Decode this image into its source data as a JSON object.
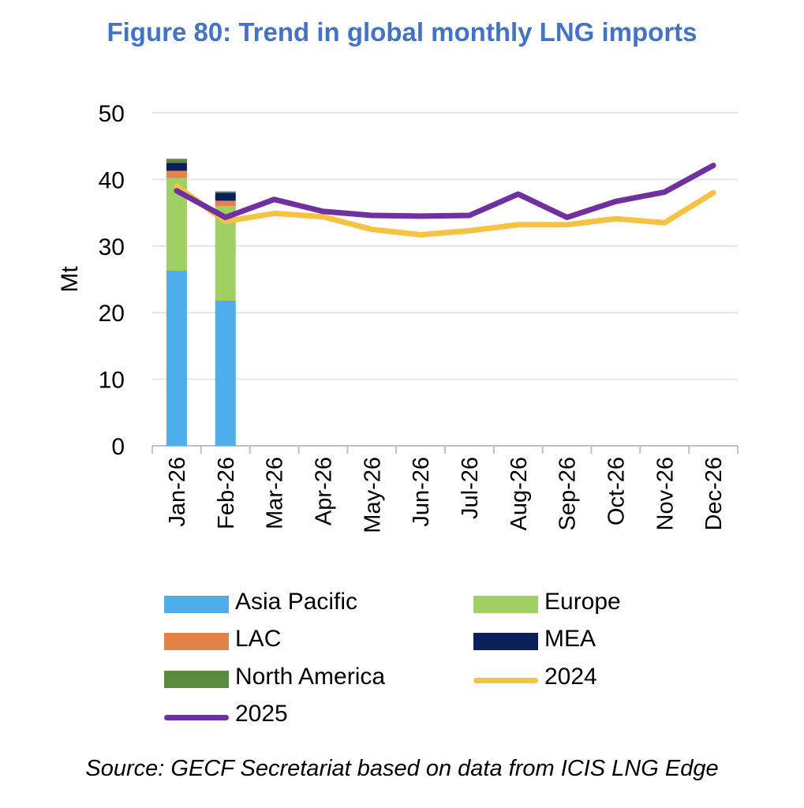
{
  "title": "Figure 80: Trend in global monthly LNG imports",
  "source": "Source: GECF Secretariat based on data from ICIS LNG Edge",
  "chart_data": {
    "type": "bar",
    "title": "Figure 80: Trend in global monthly LNG imports",
    "ylabel": "Mt",
    "xlabel": "",
    "ylim": [
      0,
      50
    ],
    "yticks": [
      0,
      10,
      20,
      30,
      40,
      50
    ],
    "grid": true,
    "legend": "bottom",
    "categories": [
      "Jan-26",
      "Feb-26",
      "Mar-26",
      "Apr-26",
      "May-26",
      "Jun-26",
      "Jul-26",
      "Aug-26",
      "Sep-26",
      "Oct-26",
      "Nov-26",
      "Dec-26"
    ],
    "series": [
      {
        "name": "Asia Pacific",
        "kind": "stacked-bar",
        "color": "#4daeea",
        "values": [
          26.3,
          21.8,
          null,
          null,
          null,
          null,
          null,
          null,
          null,
          null,
          null,
          null
        ]
      },
      {
        "name": "Europe",
        "kind": "stacked-bar",
        "color": "#a0cf63",
        "values": [
          13.9,
          14.2,
          null,
          null,
          null,
          null,
          null,
          null,
          null,
          null,
          null,
          null
        ]
      },
      {
        "name": "LAC",
        "kind": "stacked-bar",
        "color": "#e3834a",
        "values": [
          1.1,
          0.8,
          null,
          null,
          null,
          null,
          null,
          null,
          null,
          null,
          null,
          null
        ]
      },
      {
        "name": "MEA",
        "kind": "stacked-bar",
        "color": "#0b1f5c",
        "values": [
          1.2,
          1.2,
          null,
          null,
          null,
          null,
          null,
          null,
          null,
          null,
          null,
          null
        ]
      },
      {
        "name": "North America",
        "kind": "stacked-bar",
        "color": "#5a8a3c",
        "values": [
          0.6,
          0.2,
          null,
          null,
          null,
          null,
          null,
          null,
          null,
          null,
          null,
          null
        ]
      },
      {
        "name": "2024",
        "kind": "line",
        "color": "#f6c242",
        "values": [
          39.0,
          33.7,
          34.9,
          34.4,
          32.5,
          31.7,
          32.3,
          33.2,
          33.2,
          34.1,
          33.5,
          38.0
        ]
      },
      {
        "name": "2025",
        "kind": "line",
        "color": "#7030a0",
        "values": [
          38.3,
          34.3,
          37.0,
          35.2,
          34.6,
          34.5,
          34.6,
          37.8,
          34.3,
          36.7,
          38.1,
          42.1
        ]
      }
    ]
  }
}
